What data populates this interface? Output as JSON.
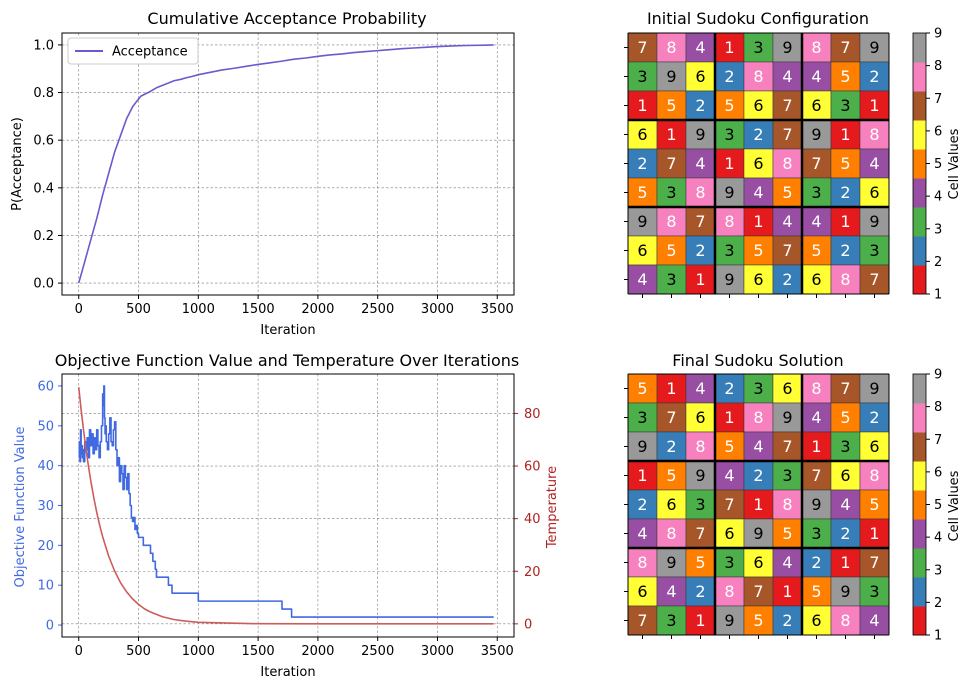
{
  "colors": {
    "acceptance_line": "#6a5acd",
    "objective_line": "#4169e1",
    "temperature_line": "#cd5c5c",
    "temp_axis": "#b22222",
    "grid": "#808080",
    "palette_set1": [
      "#e41a1c",
      "#377eb8",
      "#4daf4a",
      "#984ea3",
      "#ff7f00",
      "#ffff33",
      "#a65628",
      "#f781bf",
      "#999999"
    ]
  },
  "chart_data": [
    {
      "id": "acceptance",
      "type": "line",
      "title": "Cumulative Acceptance Probability",
      "xlabel": "Iteration",
      "ylabel": "P(Acceptance)",
      "xlim": [
        -140,
        3640
      ],
      "ylim": [
        -0.05,
        1.05
      ],
      "xticks": [
        0,
        500,
        1000,
        1500,
        2000,
        2500,
        3000,
        3500
      ],
      "yticks": [
        0.0,
        0.2,
        0.4,
        0.6,
        0.8,
        1.0
      ],
      "ytick_labels": [
        "0.0",
        "0.2",
        "0.4",
        "0.6",
        "0.8",
        "1.0"
      ],
      "grid": true,
      "legend_position": "upper-left",
      "series": [
        {
          "name": "Acceptance",
          "x": [
            0,
            50,
            100,
            150,
            200,
            250,
            300,
            350,
            400,
            450,
            480,
            520,
            560,
            600,
            650,
            700,
            750,
            800,
            850,
            900,
            950,
            1000,
            1100,
            1200,
            1300,
            1400,
            1500,
            1600,
            1700,
            1800,
            1900,
            2000,
            2100,
            2200,
            2300,
            2400,
            2500,
            2600,
            2700,
            2800,
            2900,
            3000,
            3100,
            3200,
            3300,
            3400,
            3470
          ],
          "y": [
            0.0,
            0.09,
            0.18,
            0.27,
            0.37,
            0.46,
            0.55,
            0.62,
            0.69,
            0.74,
            0.76,
            0.785,
            0.795,
            0.805,
            0.82,
            0.83,
            0.84,
            0.85,
            0.855,
            0.862,
            0.868,
            0.875,
            0.885,
            0.895,
            0.902,
            0.91,
            0.918,
            0.925,
            0.932,
            0.94,
            0.945,
            0.952,
            0.958,
            0.962,
            0.968,
            0.972,
            0.976,
            0.98,
            0.984,
            0.987,
            0.99,
            0.993,
            0.995,
            0.997,
            0.998,
            0.999,
            1.0
          ]
        }
      ]
    },
    {
      "id": "objective",
      "type": "line",
      "title": "Objective Function Value and Temperature Over Iterations",
      "xlabel": "Iteration",
      "ylabel": "Objective Function Value",
      "y2label": "Temperature",
      "xlim": [
        -140,
        3640
      ],
      "ylim": [
        -3,
        63
      ],
      "y2lim": [
        -5,
        95
      ],
      "xticks": [
        0,
        500,
        1000,
        1500,
        2000,
        2500,
        3000,
        3500
      ],
      "yticks": [
        0,
        10,
        20,
        30,
        40,
        50,
        60
      ],
      "y2ticks": [
        0,
        20,
        40,
        60,
        80
      ],
      "grid": true,
      "series": [
        {
          "name": "Objective",
          "axis": "left",
          "x": [
            0,
            5,
            10,
            15,
            20,
            25,
            30,
            35,
            40,
            50,
            60,
            70,
            80,
            90,
            100,
            110,
            120,
            130,
            140,
            150,
            160,
            170,
            180,
            190,
            200,
            205,
            210,
            215,
            220,
            225,
            230,
            240,
            250,
            260,
            270,
            280,
            290,
            300,
            310,
            320,
            330,
            340,
            350,
            360,
            370,
            380,
            390,
            400,
            410,
            420,
            430,
            440,
            450,
            460,
            470,
            480,
            490,
            500,
            520,
            540,
            560,
            580,
            600,
            620,
            640,
            650,
            660,
            700,
            750,
            780,
            800,
            900,
            1000,
            1200,
            1500,
            1700,
            1750,
            1760,
            1780,
            2000,
            3000,
            3470
          ],
          "y": [
            42,
            46,
            41,
            49,
            43,
            45,
            42,
            44,
            41,
            46,
            44,
            47,
            42,
            49,
            45,
            48,
            43,
            47,
            44,
            49,
            45,
            42,
            46,
            50,
            58,
            55,
            60,
            52,
            48,
            50,
            46,
            44,
            48,
            52,
            46,
            45,
            49,
            51,
            44,
            40,
            42,
            36,
            40,
            38,
            34,
            40,
            37,
            34,
            38,
            33,
            30,
            27,
            26,
            27,
            24,
            25,
            23,
            22,
            22,
            20,
            20,
            20,
            18,
            16,
            14,
            12,
            12,
            12,
            10,
            8,
            8,
            8,
            6,
            6,
            6,
            4,
            4,
            4,
            2,
            2,
            2,
            2
          ]
        },
        {
          "name": "Temperature",
          "axis": "right",
          "x": [
            0,
            20,
            40,
            60,
            80,
            100,
            125,
            150,
            175,
            200,
            250,
            300,
            350,
            400,
            450,
            500,
            550,
            600,
            700,
            800,
            900,
            1000,
            1500,
            2000,
            2500,
            3000,
            3470
          ],
          "y": [
            90,
            81.4,
            73.7,
            66.7,
            60.3,
            54.6,
            48.2,
            42.5,
            37.5,
            33.1,
            25.8,
            20.1,
            15.6,
            12.2,
            9.5,
            7.4,
            5.7,
            4.5,
            2.7,
            1.6,
            1.0,
            0.6,
            0.05,
            0.0,
            0.0,
            0.0,
            0.0
          ]
        }
      ]
    },
    {
      "id": "initial-sudoku",
      "type": "heatmap",
      "title": "Initial Sudoku Configuration",
      "colorbar_label": "Cell Values",
      "colorbar_ticks": [
        1,
        2,
        3,
        4,
        5,
        6,
        7,
        8,
        9
      ],
      "grid": [
        [
          7,
          8,
          4,
          1,
          3,
          9,
          8,
          7,
          9
        ],
        [
          3,
          9,
          6,
          2,
          8,
          4,
          4,
          5,
          2
        ],
        [
          1,
          5,
          2,
          5,
          6,
          7,
          6,
          3,
          1
        ],
        [
          6,
          1,
          9,
          3,
          2,
          7,
          9,
          1,
          8
        ],
        [
          2,
          7,
          4,
          1,
          6,
          8,
          7,
          5,
          4
        ],
        [
          5,
          3,
          8,
          9,
          4,
          5,
          3,
          2,
          6
        ],
        [
          9,
          8,
          7,
          8,
          1,
          4,
          4,
          1,
          9
        ],
        [
          6,
          5,
          2,
          3,
          5,
          7,
          5,
          2,
          3
        ],
        [
          4,
          3,
          1,
          9,
          6,
          2,
          6,
          8,
          7
        ]
      ]
    },
    {
      "id": "final-sudoku",
      "type": "heatmap",
      "title": "Final Sudoku Solution",
      "colorbar_label": "Cell Values",
      "colorbar_ticks": [
        1,
        2,
        3,
        4,
        5,
        6,
        7,
        8,
        9
      ],
      "grid": [
        [
          5,
          1,
          4,
          2,
          3,
          6,
          8,
          7,
          9
        ],
        [
          3,
          7,
          6,
          1,
          8,
          9,
          4,
          5,
          2
        ],
        [
          9,
          2,
          8,
          5,
          4,
          7,
          1,
          3,
          6
        ],
        [
          1,
          5,
          9,
          4,
          2,
          3,
          7,
          6,
          8
        ],
        [
          2,
          6,
          3,
          7,
          1,
          8,
          9,
          4,
          5
        ],
        [
          4,
          8,
          7,
          6,
          9,
          5,
          3,
          2,
          1
        ],
        [
          8,
          9,
          5,
          3,
          6,
          4,
          2,
          1,
          7
        ],
        [
          6,
          4,
          2,
          8,
          7,
          1,
          5,
          9,
          3
        ],
        [
          7,
          3,
          1,
          9,
          5,
          2,
          6,
          8,
          4
        ]
      ]
    }
  ]
}
